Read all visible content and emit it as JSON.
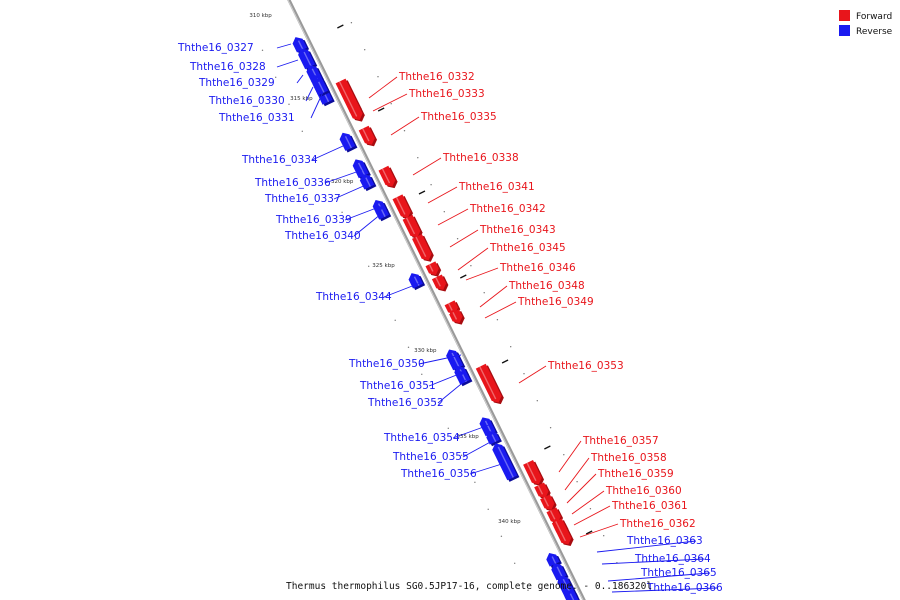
{
  "colors": {
    "forward": "#e8151b",
    "reverse": "#1a1af0",
    "backbone": "#9a9a9a"
  },
  "legend": [
    {
      "label": "Forward",
      "color": "#e8151b"
    },
    {
      "label": "Reverse",
      "color": "#1a1af0"
    }
  ],
  "caption": "Thermus thermophilus SG0.5JP17-16, complete genome. - 0..186320l",
  "position_marks": [
    {
      "label": "310 kbp",
      "kbp": 310
    },
    {
      "label": "315 kbp",
      "kbp": 315
    },
    {
      "label": "320 kbp",
      "kbp": 320
    },
    {
      "label": "325 kbp",
      "kbp": 325
    },
    {
      "label": "330 kbp",
      "kbp": 330
    },
    {
      "label": "335 kbp",
      "kbp": 335
    },
    {
      "label": "340 kbp",
      "kbp": 340
    }
  ],
  "genes": [
    {
      "id": "Ththe16_0327",
      "strand": "reverse"
    },
    {
      "id": "Ththe16_0328",
      "strand": "reverse"
    },
    {
      "id": "Ththe16_0329",
      "strand": "reverse"
    },
    {
      "id": "Ththe16_0330",
      "strand": "reverse"
    },
    {
      "id": "Ththe16_0331",
      "strand": "reverse"
    },
    {
      "id": "Ththe16_0332",
      "strand": "forward"
    },
    {
      "id": "Ththe16_0333",
      "strand": "forward"
    },
    {
      "id": "Ththe16_0334",
      "strand": "reverse"
    },
    {
      "id": "Ththe16_0335",
      "strand": "forward"
    },
    {
      "id": "Ththe16_0336",
      "strand": "reverse"
    },
    {
      "id": "Ththe16_0337",
      "strand": "reverse"
    },
    {
      "id": "Ththe16_0338",
      "strand": "forward"
    },
    {
      "id": "Ththe16_0339",
      "strand": "reverse"
    },
    {
      "id": "Ththe16_0340",
      "strand": "reverse"
    },
    {
      "id": "Ththe16_0341",
      "strand": "forward"
    },
    {
      "id": "Ththe16_0342",
      "strand": "forward"
    },
    {
      "id": "Ththe16_0343",
      "strand": "forward"
    },
    {
      "id": "Ththe16_0344",
      "strand": "reverse"
    },
    {
      "id": "Ththe16_0345",
      "strand": "forward"
    },
    {
      "id": "Ththe16_0346",
      "strand": "forward"
    },
    {
      "id": "Ththe16_0348",
      "strand": "forward"
    },
    {
      "id": "Ththe16_0349",
      "strand": "forward"
    },
    {
      "id": "Ththe16_0350",
      "strand": "reverse"
    },
    {
      "id": "Ththe16_0351",
      "strand": "reverse"
    },
    {
      "id": "Ththe16_0352",
      "strand": "reverse"
    },
    {
      "id": "Ththe16_0353",
      "strand": "forward"
    },
    {
      "id": "Ththe16_0354",
      "strand": "reverse"
    },
    {
      "id": "Ththe16_0355",
      "strand": "reverse"
    },
    {
      "id": "Ththe16_0356",
      "strand": "reverse"
    },
    {
      "id": "Ththe16_0357",
      "strand": "forward"
    },
    {
      "id": "Ththe16_0358",
      "strand": "forward"
    },
    {
      "id": "Ththe16_0359",
      "strand": "forward"
    },
    {
      "id": "Ththe16_0360",
      "strand": "forward"
    },
    {
      "id": "Ththe16_0361",
      "strand": "forward"
    },
    {
      "id": "Ththe16_0362",
      "strand": "forward"
    },
    {
      "id": "Ththe16_0363",
      "strand": "reverse"
    },
    {
      "id": "Ththe16_0364",
      "strand": "reverse"
    },
    {
      "id": "Ththe16_0365",
      "strand": "reverse"
    },
    {
      "id": "Ththe16_0366",
      "strand": "reverse"
    }
  ]
}
